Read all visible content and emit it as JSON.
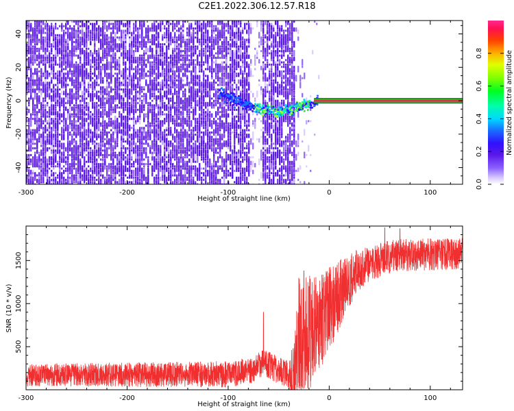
{
  "title": "C2E1.2022.306.12.57.R18",
  "colors": {
    "snr_line": "#f03030",
    "ridge_band": "#20c020",
    "ridge_core": "#e03050",
    "scatter_main": "#5a18e8"
  },
  "chart_data": [
    {
      "type": "heatmap",
      "xlabel": "Height of straight line (km)",
      "ylabel": "Frequency (Hz)",
      "xlim": [
        -300,
        132
      ],
      "ylim": [
        -50,
        48
      ],
      "xticks": [
        -300,
        -200,
        -100,
        0,
        100
      ],
      "yticks": [
        -40,
        -20,
        0,
        20,
        40
      ],
      "colorbar": {
        "label": "Normalized spectral amplitude",
        "range": [
          0.0,
          1.0
        ],
        "ticks": [
          "0.0",
          "0.2",
          "0.4",
          "0.6",
          "0.8"
        ],
        "tick_values": [
          0.0,
          0.2,
          0.4,
          0.6,
          0.8
        ]
      },
      "features": {
        "noise_region_x": [
          -300,
          -35
        ],
        "clear_band_x": [
          -80,
          -68
        ],
        "converging_trace": [
          [
            -110,
            5
          ],
          [
            -90,
            0
          ],
          [
            -70,
            -4
          ],
          [
            -55,
            -6
          ],
          [
            -40,
            -5
          ],
          [
            -30,
            -3
          ],
          [
            -20,
            -1
          ],
          [
            -12,
            0
          ]
        ],
        "constant_ridge": {
          "x": [
            -15,
            132
          ],
          "y": 0,
          "amplitude": 1.0
        }
      },
      "grid": false
    },
    {
      "type": "line",
      "xlabel": "Height of straight line (km)",
      "ylabel": "SNR (10 * v/v)",
      "xlim": [
        -300,
        132
      ],
      "ylim": [
        0,
        1900
      ],
      "xticks": [
        -300,
        -200,
        -100,
        0,
        100
      ],
      "yticks": [
        500,
        1000,
        1500
      ],
      "profile": [
        [
          -300,
          170
        ],
        [
          -100,
          180
        ],
        [
          -75,
          230
        ],
        [
          -65,
          330
        ],
        [
          -55,
          250
        ],
        [
          -40,
          180
        ],
        [
          -34,
          150
        ],
        [
          -30,
          600
        ],
        [
          -20,
          700
        ],
        [
          -5,
          850
        ],
        [
          5,
          1000
        ],
        [
          15,
          1200
        ],
        [
          30,
          1400
        ],
        [
          60,
          1550
        ],
        [
          100,
          1570
        ],
        [
          132,
          1580
        ]
      ],
      "noise_amplitude": [
        [
          -300,
          130
        ],
        [
          -40,
          160
        ],
        [
          -30,
          700
        ],
        [
          0,
          500
        ],
        [
          20,
          300
        ],
        [
          40,
          200
        ],
        [
          132,
          180
        ]
      ],
      "spikes": [
        [
          -65,
          900
        ],
        [
          -30,
          1300
        ],
        [
          -25,
          1380
        ],
        [
          -20,
          1200
        ],
        [
          -15,
          1150
        ],
        [
          -8,
          1050
        ],
        [
          5,
          1300
        ],
        [
          55,
          1880
        ],
        [
          70,
          1870
        ]
      ],
      "grid": false
    }
  ]
}
